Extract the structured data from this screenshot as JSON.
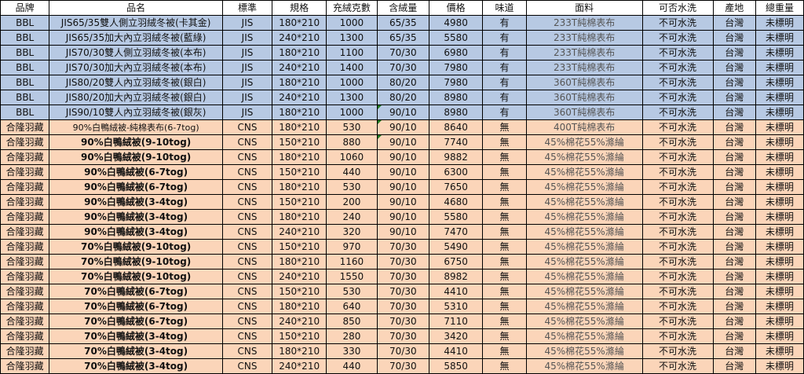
{
  "headers": [
    "品牌",
    "品名",
    "標準",
    "規格",
    "充絨克數",
    "含絨量",
    "價格",
    "味道",
    "面料",
    "可否水洗",
    "產地",
    "總重量"
  ],
  "rows": [
    {
      "group": "bbl",
      "brand": "BBL",
      "name": "JIS65/35雙人側立羽絨冬被(卡其金)",
      "std": "JIS",
      "size": "180*210",
      "fill": "1000",
      "ratio": "65/35",
      "price": "4980",
      "odor": "有",
      "fabric": "233T純棉表布",
      "wash": "不可水洗",
      "origin": "台灣",
      "weight": "未標明"
    },
    {
      "group": "bbl",
      "brand": "BBL",
      "name": "JIS65/35加大內立羽絨冬被(藍綠)",
      "std": "JIS",
      "size": "240*210",
      "fill": "1300",
      "ratio": "65/35",
      "price": "5580",
      "odor": "有",
      "fabric": "233T純棉表布",
      "wash": "不可水洗",
      "origin": "台灣",
      "weight": "未標明"
    },
    {
      "group": "bbl",
      "brand": "BBL",
      "name": "JIS70/30雙人側立羽絨冬被(本布)",
      "std": "JIS",
      "size": "180*210",
      "fill": "1100",
      "ratio": "70/30",
      "price": "6980",
      "odor": "有",
      "fabric": "233T純棉表布",
      "wash": "不可水洗",
      "origin": "台灣",
      "weight": "未標明"
    },
    {
      "group": "bbl",
      "brand": "BBL",
      "name": "JIS70/30加大內立羽絨冬被(本布)",
      "std": "JIS",
      "size": "240*210",
      "fill": "1400",
      "ratio": "70/30",
      "price": "7980",
      "odor": "有",
      "fabric": "233T純棉表布",
      "wash": "不可水洗",
      "origin": "台灣",
      "weight": "未標明"
    },
    {
      "group": "bbl",
      "brand": "BBL",
      "name": "JIS80/20雙人內立羽絨冬被(銀白)",
      "std": "JIS",
      "size": "180*210",
      "fill": "1000",
      "ratio": "80/20",
      "price": "7980",
      "odor": "有",
      "fabric": "360T純棉表布",
      "wash": "不可水洗",
      "origin": "台灣",
      "weight": "未標明"
    },
    {
      "group": "bbl",
      "brand": "BBL",
      "name": "JIS80/20加大內立羽絨冬被(銀白)",
      "std": "JIS",
      "size": "240*210",
      "fill": "1300",
      "ratio": "80/20",
      "price": "8980",
      "odor": "有",
      "fabric": "360T純棉表布",
      "wash": "不可水洗",
      "origin": "台灣",
      "weight": "未標明"
    },
    {
      "group": "bbl",
      "brand": "BBL",
      "name": "JIS90/10雙人內立羽絨冬被(銀灰)",
      "std": "JIS",
      "size": "180*210",
      "fill": "1000",
      "ratio": "90/10",
      "price": "8980",
      "odor": "有",
      "fabric": "360T純棉表布",
      "wash": "不可水洗",
      "origin": "台灣",
      "weight": "未標明"
    },
    {
      "group": "cnl",
      "brand": "合隆羽藏",
      "name": "90%白鴨絨被-純棉表布(6-7tog)",
      "std": "CNS",
      "size": "180*210",
      "fill": "530",
      "ratio": "90/10",
      "price": "8640",
      "odor": "無",
      "fabric": "400T純棉表布",
      "wash": "不可水洗",
      "origin": "台灣",
      "weight": "未標明"
    },
    {
      "group": "cnl",
      "brand": "合隆羽藏",
      "name": "90%白鴨絨被(9-10tog)",
      "std": "CNS",
      "size": "150*210",
      "fill": "880",
      "ratio": "90/10",
      "price": "7740",
      "odor": "無",
      "fabric": "45%棉花55%滌綸",
      "wash": "不可水洗",
      "origin": "台灣",
      "weight": "未標明"
    },
    {
      "group": "cnl",
      "brand": "合隆羽藏",
      "name": "90%白鴨絨被(9-10tog)",
      "std": "CNS",
      "size": "180*210",
      "fill": "1060",
      "ratio": "90/10",
      "price": "9882",
      "odor": "無",
      "fabric": "45%棉花55%滌綸",
      "wash": "不可水洗",
      "origin": "台灣",
      "weight": "未標明"
    },
    {
      "group": "cnl",
      "brand": "合隆羽藏",
      "name": "90%白鴨絨被(6-7tog)",
      "std": "CNS",
      "size": "150*210",
      "fill": "440",
      "ratio": "90/10",
      "price": "6300",
      "odor": "無",
      "fabric": "45%棉花55%滌綸",
      "wash": "不可水洗",
      "origin": "台灣",
      "weight": "未標明"
    },
    {
      "group": "cnl",
      "brand": "合隆羽藏",
      "name": "90%白鴨絨被(6-7tog)",
      "std": "CNS",
      "size": "180*210",
      "fill": "530",
      "ratio": "90/10",
      "price": "7650",
      "odor": "無",
      "fabric": "45%棉花55%滌綸",
      "wash": "不可水洗",
      "origin": "台灣",
      "weight": "未標明"
    },
    {
      "group": "cnl",
      "brand": "合隆羽藏",
      "name": "90%白鴨絨被(3-4tog)",
      "std": "CNS",
      "size": "150*210",
      "fill": "200",
      "ratio": "90/10",
      "price": "4680",
      "odor": "無",
      "fabric": "45%棉花55%滌綸",
      "wash": "不可水洗",
      "origin": "台灣",
      "weight": "未標明"
    },
    {
      "group": "cnl",
      "brand": "合隆羽藏",
      "name": "90%白鴨絨被(3-4tog)",
      "std": "CNS",
      "size": "180*210",
      "fill": "240",
      "ratio": "90/10",
      "price": "5580",
      "odor": "無",
      "fabric": "45%棉花55%滌綸",
      "wash": "不可水洗",
      "origin": "台灣",
      "weight": "未標明"
    },
    {
      "group": "cnl",
      "brand": "合隆羽藏",
      "name": "90%白鴨絨被(3-4tog)",
      "std": "CNS",
      "size": "240*210",
      "fill": "320",
      "ratio": "90/10",
      "price": "7470",
      "odor": "無",
      "fabric": "45%棉花55%滌綸",
      "wash": "不可水洗",
      "origin": "台灣",
      "weight": "未標明"
    },
    {
      "group": "cnl",
      "brand": "合隆羽藏",
      "name": "70%白鴨絨被(9-10tog)",
      "std": "CNS",
      "size": "150*210",
      "fill": "970",
      "ratio": "70/30",
      "price": "5490",
      "odor": "無",
      "fabric": "45%棉花55%滌綸",
      "wash": "不可水洗",
      "origin": "台灣",
      "weight": "未標明"
    },
    {
      "group": "cnl",
      "brand": "合隆羽藏",
      "name": "70%白鴨絨被(9-10tog)",
      "std": "CNS",
      "size": "180*210",
      "fill": "1160",
      "ratio": "70/30",
      "price": "6750",
      "odor": "無",
      "fabric": "45%棉花55%滌綸",
      "wash": "不可水洗",
      "origin": "台灣",
      "weight": "未標明"
    },
    {
      "group": "cnl",
      "brand": "合隆羽藏",
      "name": "70%白鴨絨被(9-10tog)",
      "std": "CNS",
      "size": "240*210",
      "fill": "1550",
      "ratio": "70/30",
      "price": "8982",
      "odor": "無",
      "fabric": "45%棉花55%滌綸",
      "wash": "不可水洗",
      "origin": "台灣",
      "weight": "未標明"
    },
    {
      "group": "cnl",
      "brand": "合隆羽藏",
      "name": "70%白鴨絨被(6-7tog)",
      "std": "CNS",
      "size": "150*210",
      "fill": "530",
      "ratio": "70/30",
      "price": "4410",
      "odor": "無",
      "fabric": "45%棉花55%滌綸",
      "wash": "不可水洗",
      "origin": "台灣",
      "weight": "未標明"
    },
    {
      "group": "cnl",
      "brand": "合隆羽藏",
      "name": "70%白鴨絨被(6-7tog)",
      "std": "CNS",
      "size": "180*210",
      "fill": "640",
      "ratio": "70/30",
      "price": "5310",
      "odor": "無",
      "fabric": "45%棉花55%滌綸",
      "wash": "不可水洗",
      "origin": "台灣",
      "weight": "未標明"
    },
    {
      "group": "cnl",
      "brand": "合隆羽藏",
      "name": "70%白鴨絨被(6-7tog)",
      "std": "CNS",
      "size": "240*210",
      "fill": "850",
      "ratio": "70/30",
      "price": "7110",
      "odor": "無",
      "fabric": "45%棉花55%滌綸",
      "wash": "不可水洗",
      "origin": "台灣",
      "weight": "未標明"
    },
    {
      "group": "cnl",
      "brand": "合隆羽藏",
      "name": "70%白鴨絨被(3-4tog)",
      "std": "CNS",
      "size": "150*210",
      "fill": "280",
      "ratio": "70/30",
      "price": "3420",
      "odor": "無",
      "fabric": "45%棉花55%滌綸",
      "wash": "不可水洗",
      "origin": "台灣",
      "weight": "未標明"
    },
    {
      "group": "cnl",
      "brand": "合隆羽藏",
      "name": "70%白鴨絨被(3-4tog)",
      "std": "CNS",
      "size": "180*210",
      "fill": "330",
      "ratio": "70/30",
      "price": "4410",
      "odor": "無",
      "fabric": "45%棉花55%滌綸",
      "wash": "不可水洗",
      "origin": "台灣",
      "weight": "未標明"
    },
    {
      "group": "cnl",
      "brand": "合隆羽藏",
      "name": "70%白鴨絨被(3-4tog)",
      "std": "CNS",
      "size": "240*210",
      "fill": "440",
      "ratio": "70/30",
      "price": "5850",
      "odor": "無",
      "fabric": "45%棉花55%滌綸",
      "wash": "不可水洗",
      "origin": "台灣",
      "weight": "未標明"
    }
  ]
}
